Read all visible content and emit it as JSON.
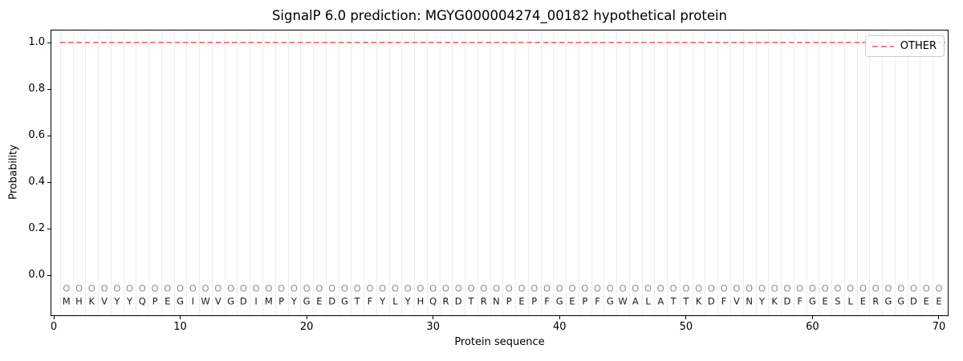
{
  "chart_data": {
    "type": "line",
    "title": "SignalP 6.0 prediction: MGYG000004274_00182 hypothetical protein",
    "xlabel": "Protein sequence",
    "ylabel": "Probability",
    "x_ticks": [
      0,
      10,
      20,
      30,
      40,
      50,
      60,
      70
    ],
    "y_ticks": [
      "0.0",
      "0.2",
      "0.4",
      "0.6",
      "0.8",
      "1.0"
    ],
    "xlim": [
      -0.2,
      70.8
    ],
    "ylim": [
      -0.17,
      1.05
    ],
    "grid": {
      "vertical_per_residue": true,
      "horizontal": false,
      "color": "#ededed"
    },
    "legend": {
      "position": "upper-right",
      "entries": [
        {
          "label": "OTHER",
          "color": "#f08080",
          "linestyle": "dashed"
        }
      ]
    },
    "series": [
      {
        "name": "OTHER",
        "color": "#f08080",
        "linestyle": "dashed",
        "x_range": [
          1,
          70
        ],
        "constant_y": 1.0
      }
    ],
    "sequence": {
      "residues": "MHKVYYQPEGIWVGDIMPYGEDGTFYLYHQRDTRNPEPFGEPFGWALATTKDFVNYKDFGESLERGGDEE",
      "length": 70,
      "per_residue_marker": "O",
      "marker_y": -0.059,
      "marker_color": "#8f8f8f",
      "letter_color": "#1c1c1c"
    }
  }
}
